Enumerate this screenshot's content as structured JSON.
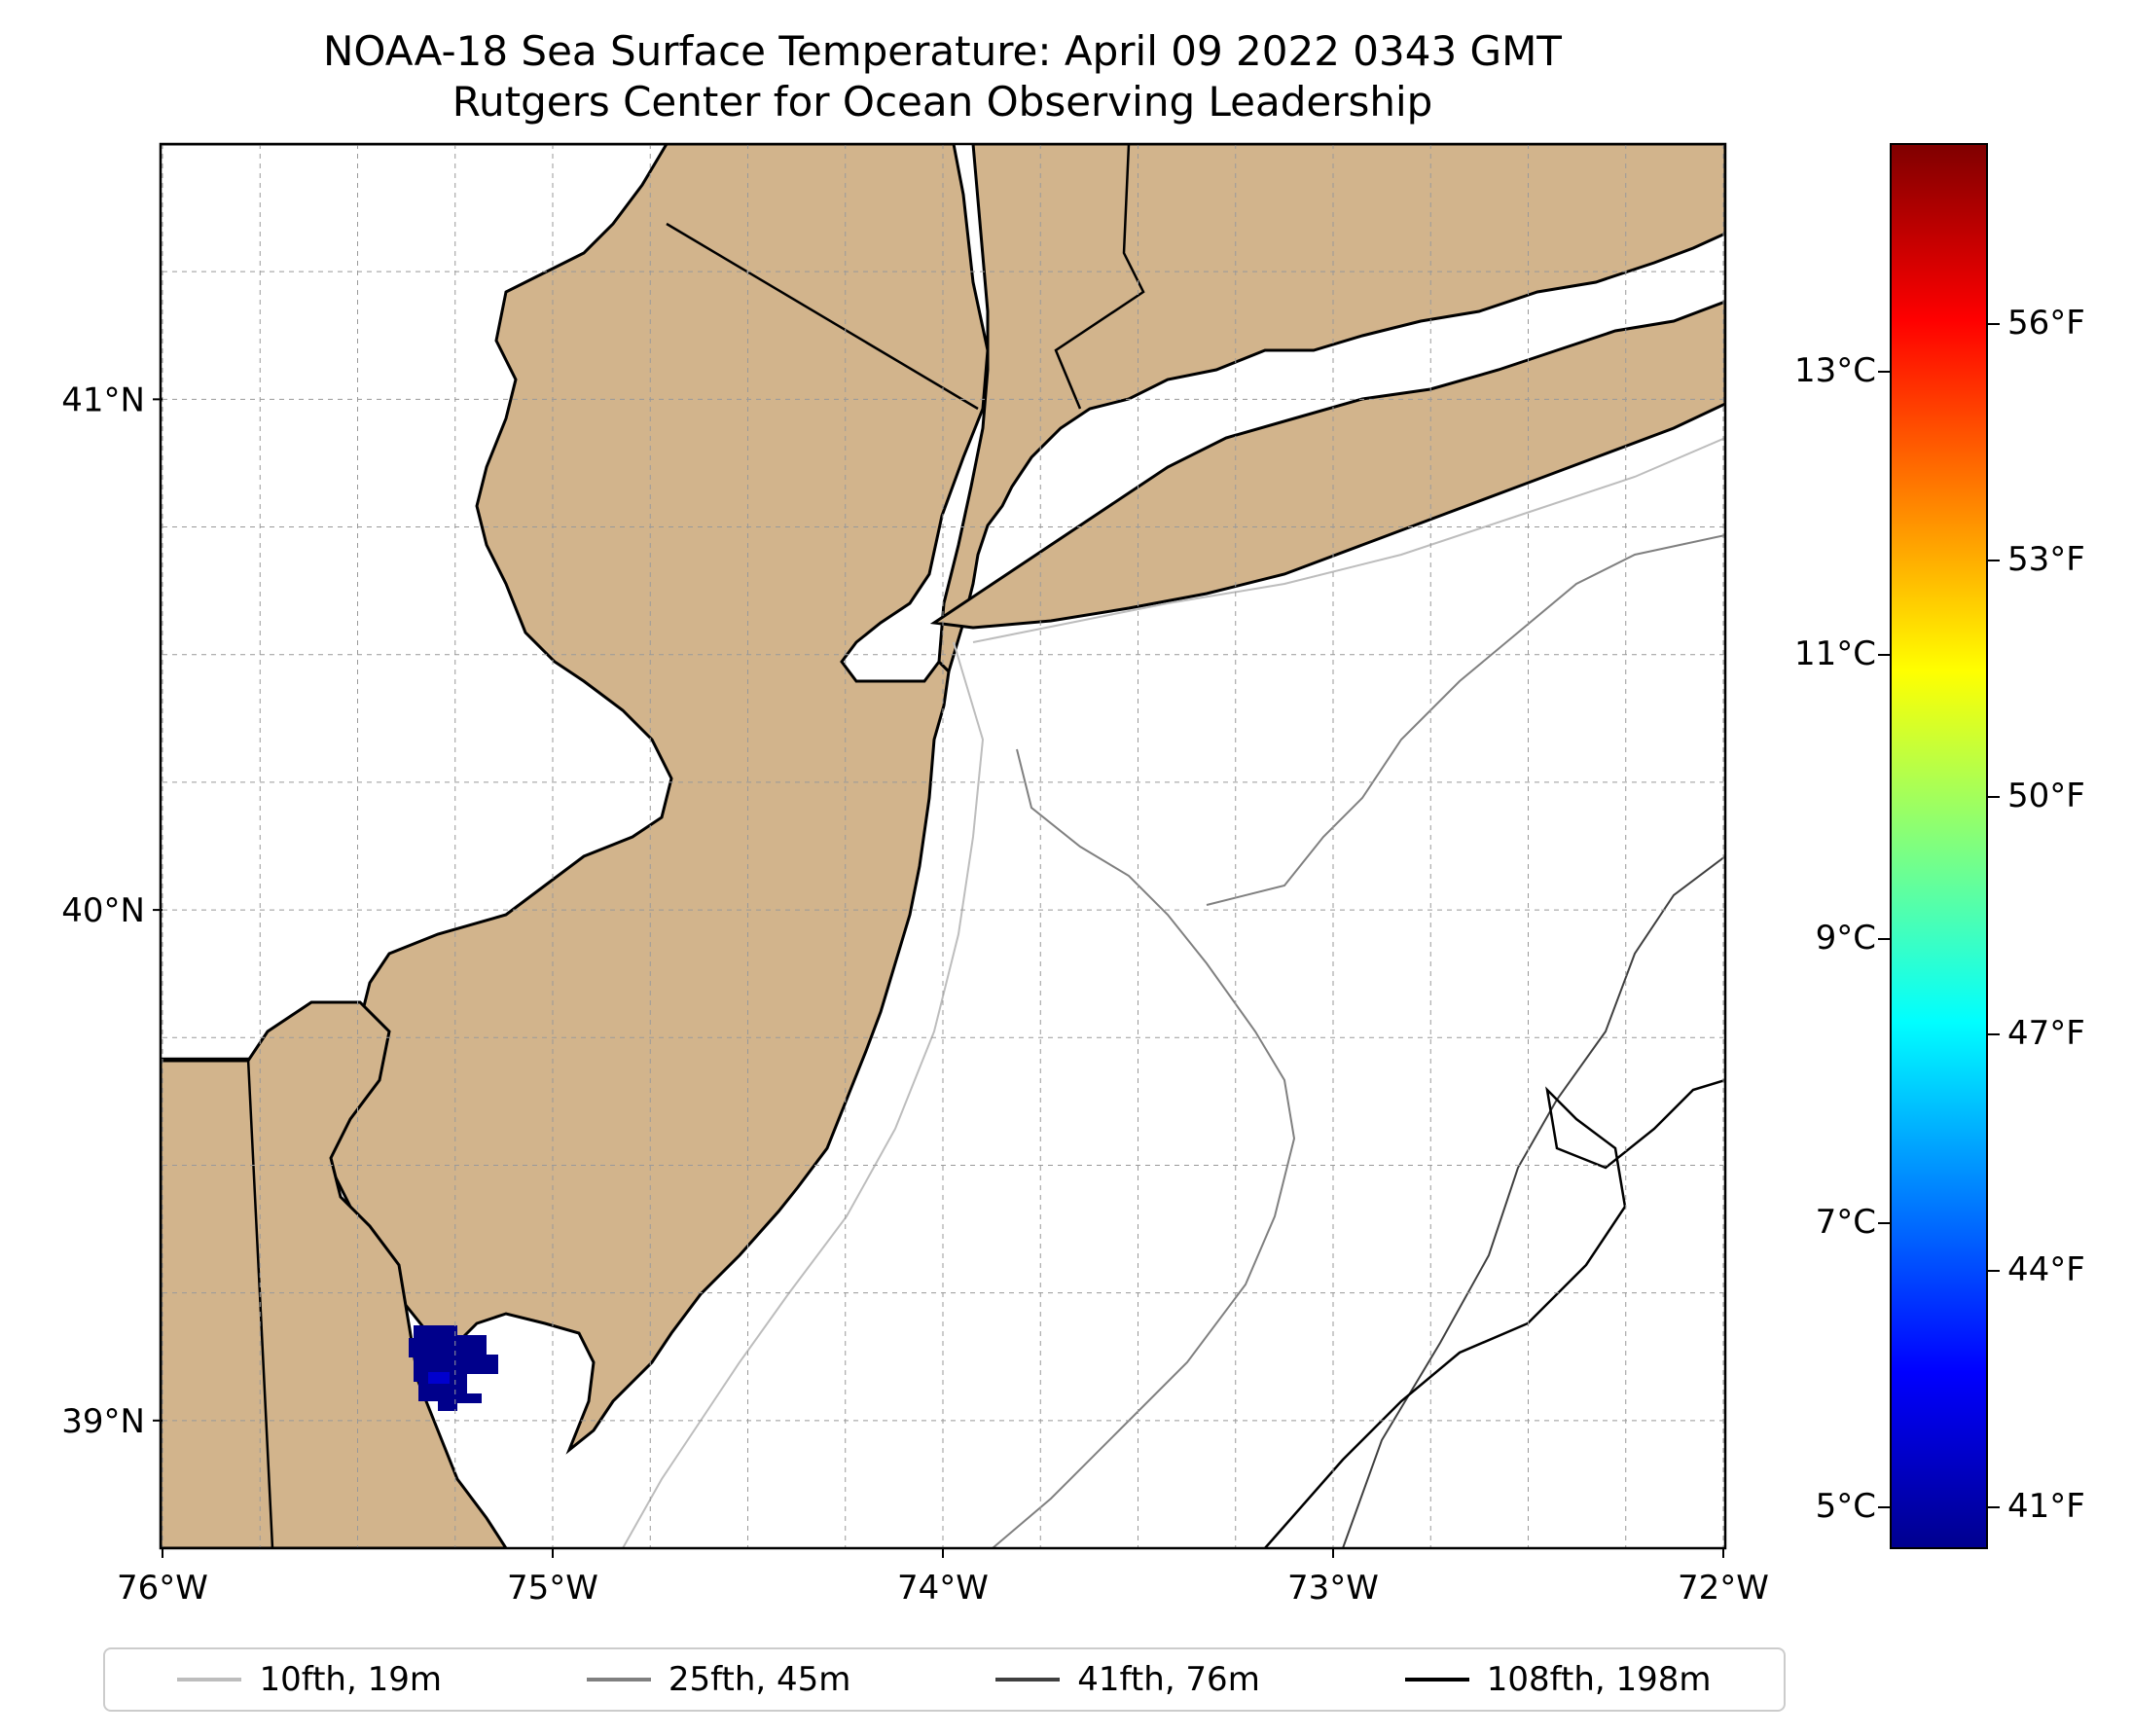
{
  "title": {
    "line1": "NOAA-18 Sea Surface Temperature: April 09 2022 0343 GMT",
    "line2": "Rutgers Center for Ocean Observing Leadership"
  },
  "map": {
    "lon_range": [
      -76,
      -72
    ],
    "lat_range": [
      38.75,
      41.5
    ],
    "x_ticks": [
      "76°W",
      "75°W",
      "74°W",
      "73°W",
      "72°W"
    ],
    "y_ticks": [
      "41°N",
      "40°N",
      "39°N"
    ],
    "land_color": "#d2b48c",
    "water_color": "#ffffff",
    "sst_patch_color": "#00008b"
  },
  "legend": {
    "items": [
      {
        "label": "10fth, 19m",
        "color": "#bdbdbd"
      },
      {
        "label": "25fth, 45m",
        "color": "#808080"
      },
      {
        "label": "41fth, 76m",
        "color": "#404040"
      },
      {
        "label": "108fth, 198m",
        "color": "#000000"
      }
    ]
  },
  "colorbar": {
    "celsius_ticks": [
      "13°C",
      "11°C",
      "9°C",
      "7°C",
      "5°C"
    ],
    "fahrenheit_ticks": [
      "56°F",
      "53°F",
      "50°F",
      "47°F",
      "44°F",
      "41°F"
    ],
    "colormap": "jet",
    "range_c": [
      4.7,
      14.6
    ]
  }
}
